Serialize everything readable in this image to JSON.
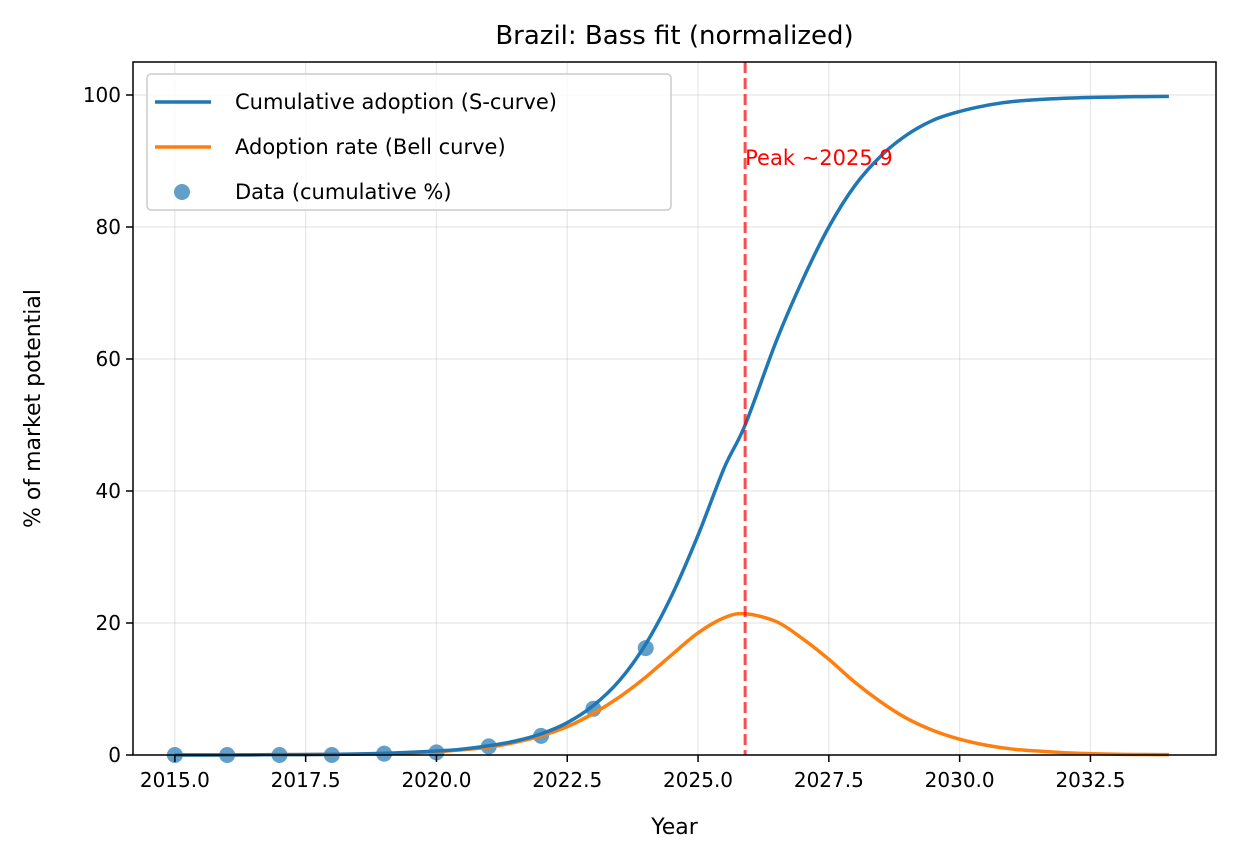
{
  "chart_data": {
    "type": "line",
    "title": "Brazil: Bass fit (normalized)",
    "xlabel": "Year",
    "ylabel": "% of market potential",
    "xlim": [
      2014.2,
      2034.9
    ],
    "ylim": [
      0,
      105
    ],
    "xticks": [
      2015.0,
      2017.5,
      2020.0,
      2022.5,
      2025.0,
      2027.5,
      2030.0,
      2032.5
    ],
    "xtick_labels": [
      "2015.0",
      "2017.5",
      "2020.0",
      "2022.5",
      "2025.0",
      "2027.5",
      "2030.0",
      "2032.5"
    ],
    "yticks": [
      0,
      20,
      40,
      60,
      80,
      100
    ],
    "ytick_labels": [
      "0",
      "20",
      "40",
      "60",
      "80",
      "100"
    ],
    "grid": true,
    "legend_position": "top-left",
    "series": [
      {
        "name": "Cumulative adoption (S-curve)",
        "kind": "line",
        "color": "#1f77b4",
        "x": [
          2015,
          2016,
          2017,
          2018,
          2019,
          2020,
          2020.5,
          2021,
          2021.5,
          2022,
          2022.5,
          2023,
          2023.5,
          2024,
          2024.5,
          2025,
          2025.5,
          2025.9,
          2026.5,
          2027,
          2027.5,
          2028,
          2028.5,
          2029,
          2029.5,
          2030,
          2030.5,
          2031,
          2032,
          2033,
          2034
        ],
        "y": [
          0.0,
          0.0,
          0.05,
          0.1,
          0.25,
          0.6,
          0.9,
          1.4,
          2.1,
          3.2,
          4.9,
          7.5,
          11.3,
          16.8,
          24.2,
          33.3,
          43.5,
          50.0,
          62.8,
          72.0,
          80.0,
          86.3,
          90.8,
          94.0,
          96.2,
          97.5,
          98.4,
          99.0,
          99.5,
          99.7,
          99.8
        ]
      },
      {
        "name": "Adoption rate (Bell curve)",
        "kind": "line",
        "color": "#ff7f0e",
        "x": [
          2015,
          2016,
          2017,
          2018,
          2019,
          2020,
          2020.5,
          2021,
          2021.5,
          2022,
          2022.5,
          2023,
          2023.5,
          2024,
          2024.5,
          2025,
          2025.5,
          2025.9,
          2026.5,
          2027,
          2027.5,
          2028,
          2028.5,
          2029,
          2029.5,
          2030,
          2030.5,
          2031,
          2031.5,
          2032,
          2033,
          2034
        ],
        "y": [
          0.0,
          0.0,
          0.05,
          0.1,
          0.2,
          0.5,
          0.8,
          1.2,
          1.9,
          2.9,
          4.3,
          6.3,
          8.8,
          11.8,
          15.2,
          18.5,
          20.8,
          21.4,
          20.2,
          17.6,
          14.5,
          11.0,
          8.0,
          5.5,
          3.7,
          2.4,
          1.5,
          0.9,
          0.6,
          0.35,
          0.12,
          0.05
        ]
      },
      {
        "name": "Data (cumulative %)",
        "kind": "scatter",
        "color": "#1f77b4",
        "x": [
          2015,
          2016,
          2017,
          2018,
          2019,
          2020,
          2021,
          2022,
          2023,
          2024
        ],
        "y": [
          0.0,
          0.0,
          0.0,
          0.0,
          0.2,
          0.4,
          1.3,
          2.9,
          7.0,
          16.2
        ]
      }
    ],
    "annotations": [
      {
        "type": "vline",
        "x": 2025.9,
        "color": "#ff0000",
        "style": "dashed"
      },
      {
        "type": "text",
        "text": "Peak ~2025.9",
        "x": 2025.9,
        "y": 90,
        "color": "#ff0000"
      }
    ]
  }
}
